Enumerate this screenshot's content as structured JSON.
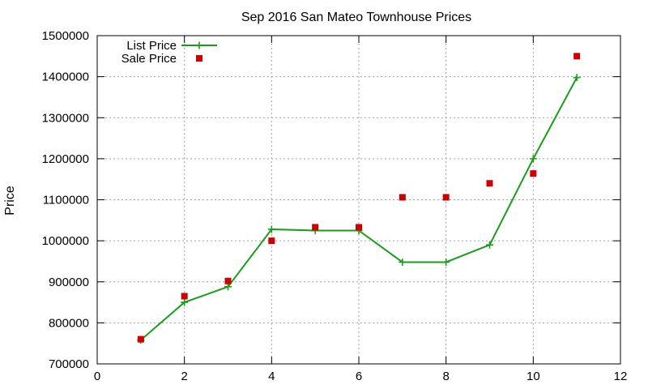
{
  "chart_data": {
    "type": "line",
    "title": "Sep 2016 San Mateo Townhouse Prices",
    "xlabel": "",
    "ylabel": "Price",
    "xlim": [
      0,
      12
    ],
    "ylim": [
      700000,
      1500000
    ],
    "xticks": [
      0,
      2,
      4,
      6,
      8,
      10,
      12
    ],
    "yticks": [
      700000,
      800000,
      900000,
      1000000,
      1100000,
      1200000,
      1300000,
      1400000,
      1500000
    ],
    "grid": true,
    "legend_position": "top-left",
    "series": [
      {
        "name": "List Price",
        "style": "line-with-plus-markers",
        "color": "#1a9e1a",
        "x": [
          1,
          2,
          3,
          4,
          5,
          6,
          7,
          8,
          9,
          10,
          11
        ],
        "y": [
          758000,
          850000,
          888000,
          1028000,
          1025000,
          1025000,
          948000,
          948000,
          990000,
          1200000,
          1398000
        ]
      },
      {
        "name": "Sale Price",
        "style": "square-markers",
        "color": "#cc0000",
        "x": [
          1,
          2,
          3,
          4,
          5,
          6,
          7,
          8,
          9,
          10,
          11
        ],
        "y": [
          760000,
          865000,
          902000,
          1000000,
          1033000,
          1033000,
          1106000,
          1106000,
          1140000,
          1164000,
          1450000
        ]
      }
    ]
  }
}
